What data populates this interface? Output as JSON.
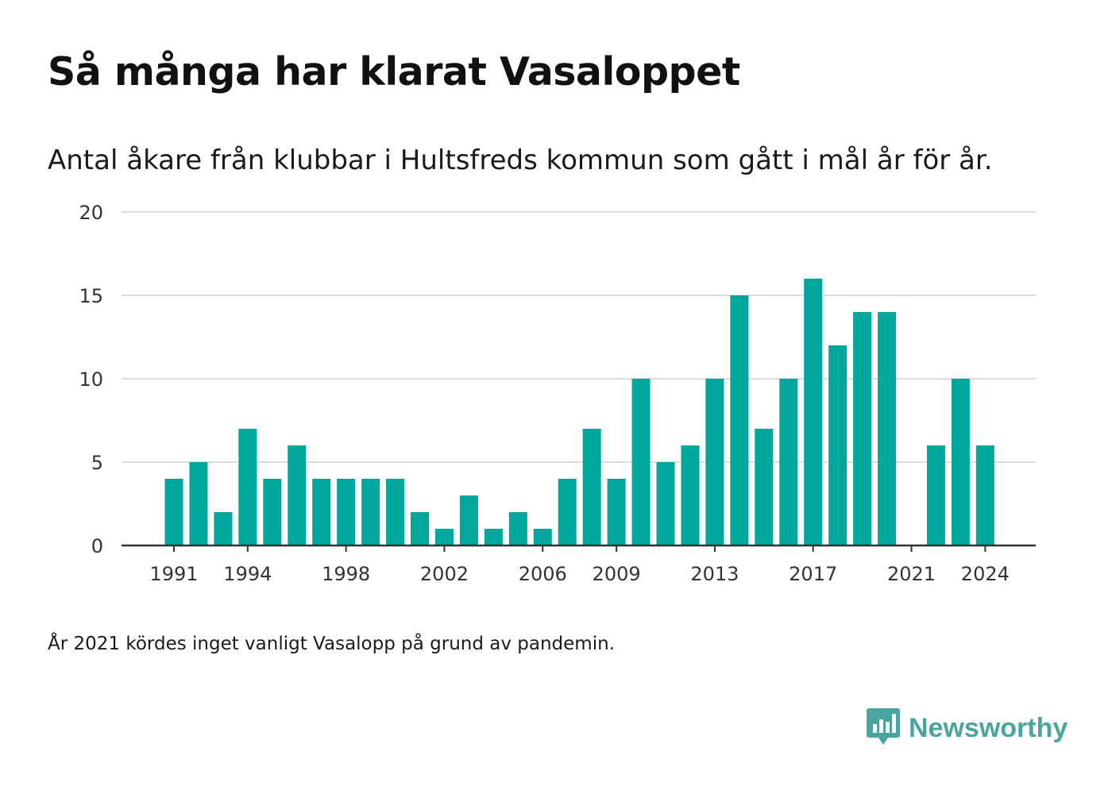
{
  "header": {
    "title": "Så många har klarat Vasaloppet",
    "subtitle": "Antal åkare från klubbar i Hultsfreds kommun som gått i mål år för år."
  },
  "footer": {
    "note": "År 2021 kördes inget vanligt Vasalopp på grund av pandemin.",
    "brand": "Newsworthy",
    "brand_icon": "bar-chart-speech-bubble-icon"
  },
  "colors": {
    "bar": "#00a79d",
    "grid": "#dddddd",
    "axis": "#333333",
    "brand": "#4aa59c"
  },
  "chart_data": {
    "type": "bar",
    "title": "Så många har klarat Vasaloppet",
    "subtitle": "Antal åkare från klubbar i Hultsfreds kommun som gått i mål år för år.",
    "xlabel": "",
    "ylabel": "",
    "ylim": [
      0,
      20
    ],
    "yticks": [
      0,
      5,
      10,
      15,
      20
    ],
    "xticks": [
      1991,
      1994,
      1998,
      2002,
      2006,
      2009,
      2013,
      2017,
      2021,
      2024
    ],
    "grid": true,
    "categories": [
      1991,
      1992,
      1993,
      1994,
      1995,
      1996,
      1997,
      1998,
      1999,
      2000,
      2001,
      2002,
      2003,
      2004,
      2005,
      2006,
      2007,
      2008,
      2009,
      2010,
      2011,
      2012,
      2013,
      2014,
      2015,
      2016,
      2017,
      2018,
      2019,
      2020,
      2021,
      2022,
      2023,
      2024
    ],
    "values": [
      4,
      5,
      2,
      7,
      4,
      6,
      4,
      4,
      4,
      4,
      2,
      1,
      3,
      1,
      2,
      1,
      4,
      7,
      4,
      10,
      5,
      6,
      10,
      15,
      7,
      10,
      16,
      12,
      14,
      14,
      0,
      6,
      10,
      6
    ]
  }
}
